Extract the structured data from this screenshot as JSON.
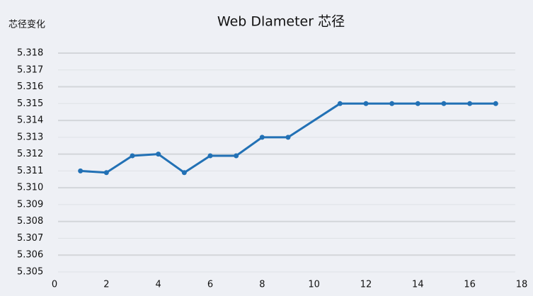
{
  "chart_data": {
    "type": "line",
    "title": "Web Dlameter 芯径",
    "y_label": "芯径变化",
    "x": [
      1,
      2,
      3,
      4,
      5,
      6,
      7,
      8,
      9,
      11,
      12,
      13,
      14,
      15,
      16,
      17
    ],
    "series": [
      {
        "color": "#2271b5",
        "values": [
          5.311,
          5.3109,
          5.3119,
          5.312,
          5.3109,
          5.3119,
          5.3119,
          5.313,
          5.313,
          5.315,
          5.315,
          5.315,
          5.315,
          5.315,
          5.315,
          5.315
        ]
      }
    ],
    "xlim": [
      0,
      18
    ],
    "xticks": [
      0,
      2,
      4,
      6,
      8,
      10,
      12,
      14,
      16,
      18
    ],
    "ylim": [
      5.305,
      5.318
    ],
    "yticks": [
      5.305,
      5.306,
      5.307,
      5.308,
      5.309,
      {
        "value": 5.31,
        "label": "5.310"
      },
      5.311,
      5.312,
      5.313,
      5.314,
      5.315,
      5.316,
      5.317,
      5.318
    ],
    "grid": true
  }
}
